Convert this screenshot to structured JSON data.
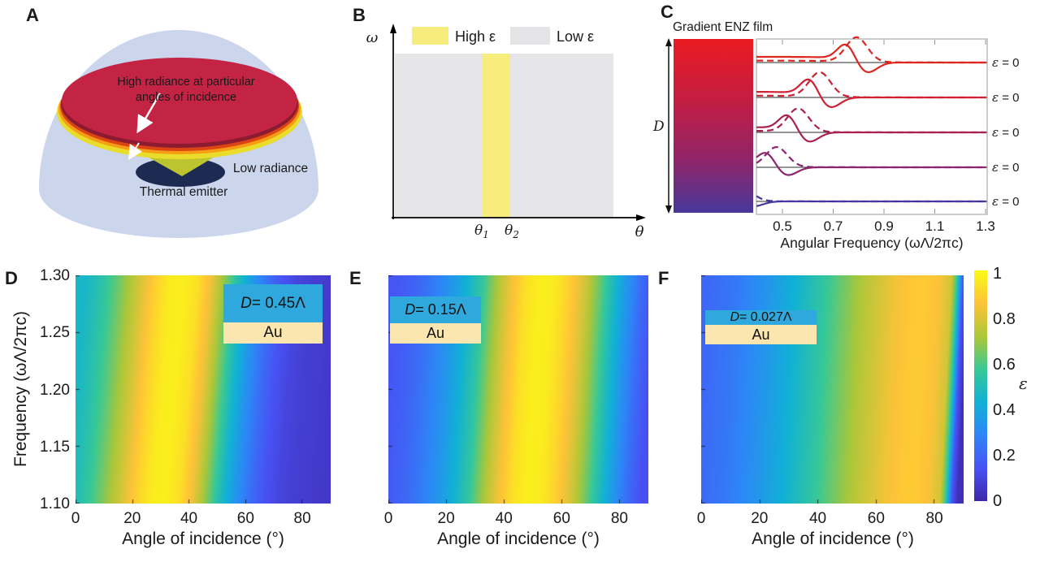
{
  "labels": {
    "a": "A",
    "b": "B",
    "c": "C",
    "d": "D",
    "e": "E",
    "f": "F"
  },
  "panel_a": {
    "annotation_line1": "High radiance at particular",
    "annotation_line2": "angles of incidence",
    "low_radiance": "Low radiance",
    "thermal_emitter": "Thermal emitter"
  },
  "panel_b": {
    "legend_high": "High ε",
    "legend_low": "Low ε",
    "y_axis": "ω",
    "x_axis": "θ",
    "theta1": {
      "base": "θ",
      "sub": "1"
    },
    "theta2": {
      "base": "θ",
      "sub": "2"
    },
    "band": {
      "from": "θ1",
      "to": "θ2",
      "fill": "high ε"
    }
  },
  "panel_c": {
    "title": "Gradient ENZ film",
    "depth_label": "D"
  },
  "colors": {
    "dome": "#CBD5EC",
    "disc": "#C32444",
    "disc_shadow": "#8C1B31",
    "rim_red": "#DC4413",
    "rim_orange": "#F59D15",
    "rim_yellow": "#E9DC2B",
    "cone": "#BCC42F",
    "emitter": "#1D2B53",
    "bg_gray": "#E6E6E8",
    "band_yellow": "#F6ED7D",
    "legend_gray": "#E4E4E6",
    "inset_blue": "#2FA9DD",
    "inset_gold": "#FAE6AE",
    "enz_gradient": [
      {
        "p": 0,
        "c": "#EB1B22"
      },
      {
        "p": 0.35,
        "c": "#C41D41"
      },
      {
        "p": 0.7,
        "c": "#8F2569"
      },
      {
        "p": 1,
        "c": "#47389B"
      }
    ],
    "parula": [
      {
        "p": 0,
        "rgb": [
          62,
          38,
          168
        ]
      },
      {
        "p": 0.14,
        "rgb": [
          72,
          82,
          244
        ]
      },
      {
        "p": 0.29,
        "rgb": [
          45,
          135,
          247
        ]
      },
      {
        "p": 0.43,
        "rgb": [
          17,
          177,
          214
        ]
      },
      {
        "p": 0.57,
        "rgb": [
          55,
          200,
          151
        ]
      },
      {
        "p": 0.71,
        "rgb": [
          171,
          199,
          57
        ]
      },
      {
        "p": 0.86,
        "rgb": [
          254,
          195,
          56
        ]
      },
      {
        "p": 1,
        "rgb": [
          249,
          251,
          20
        ]
      }
    ]
  },
  "chart_data": [
    {
      "id": "c",
      "type": "line",
      "xlabel": "Angular Frequency (ωΛ/2πc)",
      "x_range": [
        0.4,
        1.31
      ],
      "xticks": [
        0.5,
        0.7,
        0.9,
        1.1,
        1.3
      ],
      "row_label": {
        "symbol": "ε",
        "eq": " = 0"
      },
      "note": "Five vertically offset reflection spectra (solid and dashed curves) for slices of a gradient ENZ film; the resonance shifts to lower frequency with depth D",
      "rows": [
        {
          "resonance": 0.78,
          "amp": 20,
          "color": "#DC2620"
        },
        {
          "resonance": 0.635,
          "amp": 20,
          "color": "#CE2133"
        },
        {
          "resonance": 0.55,
          "amp": 19,
          "color": "#A82153"
        },
        {
          "resonance": 0.465,
          "amp": 16,
          "color": "#8C2470"
        },
        {
          "resonance": 0.33,
          "amp": 10,
          "color": "#43389E"
        }
      ]
    },
    {
      "id": "d",
      "type": "heatmap",
      "inset": {
        "var": "D",
        "rest": " = 0.45Λ",
        "metal": "Au"
      },
      "xlabel": "Angle of incidence (°)",
      "ylabel": "Frequency (ωΛ/2πc)",
      "value_label": "ε",
      "value_range": [
        0,
        1
      ],
      "x_range": [
        0,
        90
      ],
      "y_range": [
        1.1,
        1.3
      ],
      "xticks": [
        0,
        20,
        40,
        60,
        80
      ],
      "yticks": [
        1.3,
        1.25,
        1.2,
        1.15,
        1.1
      ],
      "tilt": 7,
      "angles": [
        0,
        5,
        10,
        15,
        20,
        25,
        30,
        35,
        40,
        45,
        50,
        55,
        60,
        65,
        70,
        75,
        80,
        85,
        90
      ],
      "values": [
        0.46,
        0.52,
        0.6,
        0.7,
        0.8,
        0.9,
        0.96,
        0.97,
        0.93,
        0.82,
        0.65,
        0.47,
        0.33,
        0.22,
        0.14,
        0.1,
        0.08,
        0.07,
        0.06
      ]
    },
    {
      "id": "e",
      "type": "heatmap",
      "inset": {
        "var": "D",
        "rest": " = 0.15Λ",
        "metal": "Au"
      },
      "xlabel": "Angle of incidence (°)",
      "ylabel": "Frequency (ωΛ/2πc)",
      "value_label": "ε",
      "value_range": [
        0,
        1
      ],
      "x_range": [
        0,
        90
      ],
      "y_range": [
        1.1,
        1.3
      ],
      "xticks": [
        0,
        20,
        40,
        60,
        80
      ],
      "yticks": [
        1.3,
        1.25,
        1.2,
        1.15,
        1.1
      ],
      "tilt": 5,
      "angles": [
        0,
        5,
        10,
        15,
        20,
        25,
        30,
        35,
        40,
        45,
        50,
        55,
        60,
        65,
        70,
        75,
        80,
        85,
        90
      ],
      "values": [
        0.15,
        0.18,
        0.22,
        0.28,
        0.35,
        0.44,
        0.55,
        0.7,
        0.83,
        0.93,
        0.97,
        0.96,
        0.9,
        0.8,
        0.66,
        0.5,
        0.35,
        0.22,
        0.13
      ]
    },
    {
      "id": "f",
      "type": "heatmap",
      "inset": {
        "var": "D",
        "rest": " = 0.027Λ",
        "metal": "Au"
      },
      "xlabel": "Angle of incidence (°)",
      "ylabel": "Frequency (ωΛ/2πc)",
      "value_label": "ε",
      "value_range": [
        0,
        1
      ],
      "x_range": [
        0,
        90
      ],
      "y_range": [
        1.1,
        1.3
      ],
      "xticks": [
        0,
        20,
        40,
        60,
        80
      ],
      "yticks": [
        1.3,
        1.25,
        1.2,
        1.15,
        1.1
      ],
      "tilt": 4,
      "angles": [
        0,
        10,
        20,
        30,
        40,
        50,
        55,
        60,
        65,
        70,
        75,
        80,
        84,
        86,
        88,
        90
      ],
      "values": [
        0.2,
        0.25,
        0.33,
        0.43,
        0.55,
        0.68,
        0.74,
        0.79,
        0.84,
        0.87,
        0.88,
        0.85,
        0.78,
        0.55,
        0.15,
        0.03
      ]
    },
    {
      "id": "colorbar",
      "type": "colorbar",
      "label": "ε",
      "ticks": [
        1,
        0.8,
        0.6,
        0.4,
        0.2,
        0
      ],
      "colormap": "parula"
    }
  ]
}
